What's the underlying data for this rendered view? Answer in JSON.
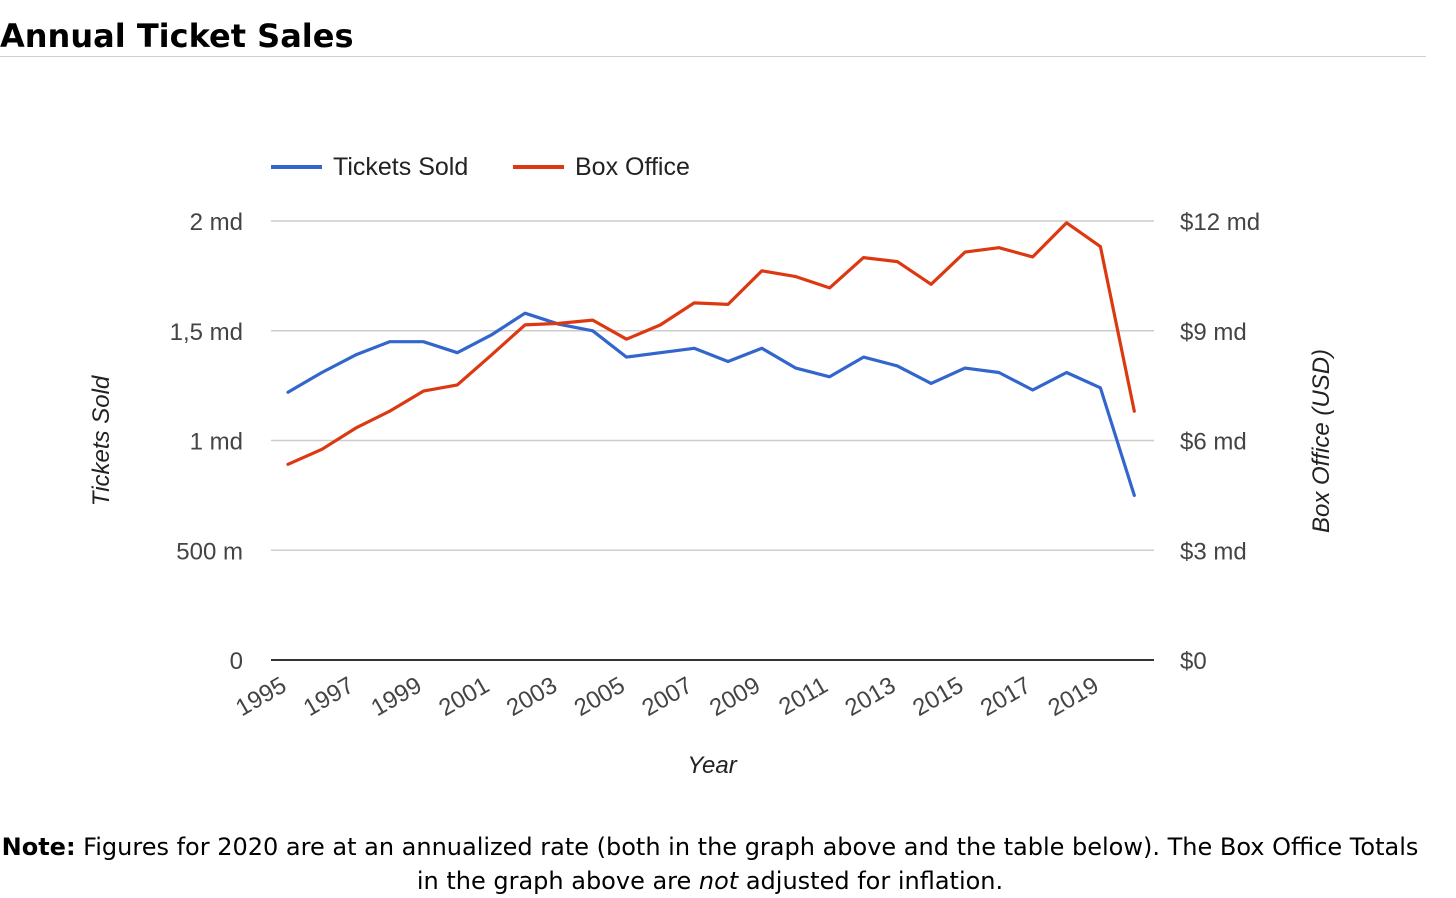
{
  "page": {
    "title": "Annual Ticket Sales",
    "note": {
      "bold": "Note:",
      "part1": " Figures for 2020 are at an annualized rate (both in the graph above and the table below). The Box Office Totals in the graph above are ",
      "emphasis": "not",
      "part2": " adjusted for inflation."
    }
  },
  "chart_data": {
    "type": "line",
    "title": "",
    "xlabel": "Year",
    "ylabel_left": "Tickets Sold",
    "ylabel_right": "Box Office (USD)",
    "legend_position": "top-left",
    "grid": true,
    "x": [
      1995,
      1996,
      1997,
      1998,
      1999,
      2000,
      2001,
      2002,
      2003,
      2004,
      2005,
      2006,
      2007,
      2008,
      2009,
      2010,
      2011,
      2012,
      2013,
      2014,
      2015,
      2016,
      2017,
      2018,
      2019,
      2020
    ],
    "x_tick_labels": [
      "1995",
      "1997",
      "1999",
      "2001",
      "2003",
      "2005",
      "2007",
      "2009",
      "2011",
      "2013",
      "2015",
      "2017",
      "2019"
    ],
    "y_left": {
      "range": [
        0,
        2000000000
      ],
      "ticks": [
        0,
        500000000,
        1000000000,
        1500000000,
        2000000000
      ],
      "tick_labels": [
        "0",
        "500 m",
        "1 md",
        "1,5 md",
        "2 md"
      ]
    },
    "y_right": {
      "range": [
        0,
        12000000000
      ],
      "ticks": [
        0,
        3000000000,
        6000000000,
        9000000000,
        12000000000
      ],
      "tick_labels": [
        "$0",
        "$3 md",
        "$6 md",
        "$9 md",
        "$12 md"
      ]
    },
    "series": [
      {
        "name": "Tickets Sold",
        "axis": "left",
        "color": "#3366cc",
        "values": [
          1220000000,
          1310000000,
          1390000000,
          1450000000,
          1450000000,
          1400000000,
          1480000000,
          1580000000,
          1530000000,
          1500000000,
          1380000000,
          1400000000,
          1420000000,
          1360000000,
          1420000000,
          1330000000,
          1290000000,
          1380000000,
          1340000000,
          1260000000,
          1330000000,
          1310000000,
          1230000000,
          1310000000,
          1240000000,
          750000000
        ]
      },
      {
        "name": "Box Office",
        "axis": "right",
        "color": "#dc3912",
        "values": [
          5350000000,
          5760000000,
          6340000000,
          6800000000,
          7350000000,
          7520000000,
          8330000000,
          9160000000,
          9200000000,
          9290000000,
          8770000000,
          9160000000,
          9760000000,
          9720000000,
          10640000000,
          10480000000,
          10170000000,
          11000000000,
          10890000000,
          10270000000,
          11150000000,
          11270000000,
          11020000000,
          11950000000,
          11300000000,
          6800000000
        ]
      }
    ]
  }
}
